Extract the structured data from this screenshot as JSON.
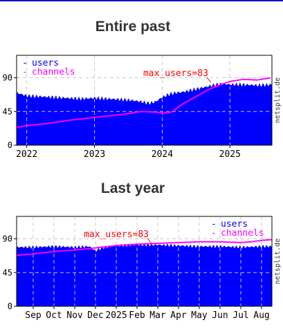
{
  "sections": [
    {
      "title": "Entire past"
    },
    {
      "title": "Last year"
    }
  ],
  "chart_data": [
    {
      "type": "area",
      "title": "Entire past",
      "watermark": "netsplit.de",
      "y_ticks": [
        "0",
        "45",
        "90"
      ],
      "ylim": [
        0,
        120
      ],
      "x_ticks": [
        {
          "label": "2022",
          "x": 2022.0
        },
        {
          "label": "2023",
          "x": 2023.0
        },
        {
          "label": "2024",
          "x": 2024.0
        },
        {
          "label": "2025",
          "x": 2025.0
        }
      ],
      "xlim": [
        2021.85,
        2025.62
      ],
      "grid": true,
      "legend": {
        "position": "top-left",
        "items": [
          "users",
          "channels"
        ]
      },
      "annotation": {
        "text": "max_users=83",
        "x": 2024.72,
        "y": 83
      },
      "series": [
        {
          "name": "users",
          "style": "area",
          "color": "#0000ff",
          "x": [
            2021.85,
            2022.0,
            2022.2,
            2022.4,
            2022.6,
            2022.8,
            2023.0,
            2023.2,
            2023.4,
            2023.55,
            2023.7,
            2023.8,
            2023.9,
            2024.0,
            2024.1,
            2024.2,
            2024.3,
            2024.4,
            2024.5,
            2024.6,
            2024.7,
            2024.8,
            2024.9,
            2025.0,
            2025.2,
            2025.4,
            2025.62
          ],
          "values": [
            70,
            66,
            65,
            64,
            63,
            62,
            63,
            62,
            61,
            60,
            58,
            56,
            58,
            64,
            68,
            70,
            71,
            73,
            75,
            77,
            79,
            81,
            82,
            81,
            81,
            80,
            81
          ]
        },
        {
          "name": "channels",
          "style": "line",
          "color": "#ff00ff",
          "x": [
            2021.85,
            2022.0,
            2022.2,
            2022.4,
            2022.6,
            2022.8,
            2023.0,
            2023.2,
            2023.4,
            2023.55,
            2023.7,
            2023.9,
            2024.0,
            2024.1,
            2024.15,
            2024.3,
            2024.5,
            2024.7,
            2024.9,
            2025.0,
            2025.2,
            2025.4,
            2025.6
          ],
          "values": [
            24,
            26,
            28,
            30,
            33,
            35,
            37,
            39,
            41,
            43,
            45,
            44,
            43,
            43,
            45,
            55,
            65,
            75,
            82,
            85,
            88,
            87,
            90
          ]
        }
      ]
    },
    {
      "type": "area",
      "title": "Last year",
      "watermark": "netsplit.de",
      "y_ticks": [
        "0",
        "45",
        "90"
      ],
      "ylim": [
        0,
        120
      ],
      "x_ticks": [
        {
          "label": "Sep",
          "x": 1
        },
        {
          "label": "Oct",
          "x": 2
        },
        {
          "label": "Nov",
          "x": 3
        },
        {
          "label": "Dec",
          "x": 4
        },
        {
          "label": "2025",
          "x": 5
        },
        {
          "label": "Feb",
          "x": 6
        },
        {
          "label": "Mar",
          "x": 7
        },
        {
          "label": "Apr",
          "x": 8
        },
        {
          "label": "May",
          "x": 9
        },
        {
          "label": "Jun",
          "x": 10
        },
        {
          "label": "Jul",
          "x": 11
        },
        {
          "label": "Aug",
          "x": 12
        }
      ],
      "xlim": [
        0.2,
        12.5
      ],
      "grid": true,
      "legend": {
        "position": "top-right",
        "items": [
          "users",
          "channels"
        ]
      },
      "annotation": {
        "text": "max_users=83",
        "x": 6.7,
        "y": 83
      },
      "series": [
        {
          "name": "users",
          "style": "area",
          "color": "#0000ff",
          "x": [
            0.2,
            1,
            2,
            3,
            3.7,
            4,
            4.3,
            5,
            6,
            7,
            8,
            9,
            10,
            11,
            12,
            12.5
          ],
          "values": [
            79,
            79,
            80,
            79,
            80,
            74,
            78,
            81,
            82,
            82,
            81,
            80,
            80,
            79,
            80,
            80
          ]
        },
        {
          "name": "channels",
          "style": "line",
          "color": "#ff00ff",
          "x": [
            0.2,
            1,
            2,
            3,
            4,
            5,
            6,
            7,
            8,
            9,
            10,
            11,
            11.5,
            12,
            12.5
          ],
          "values": [
            68,
            70,
            73,
            75,
            78,
            81,
            83,
            84,
            85,
            86,
            86,
            85,
            86,
            88,
            89
          ]
        }
      ]
    }
  ]
}
